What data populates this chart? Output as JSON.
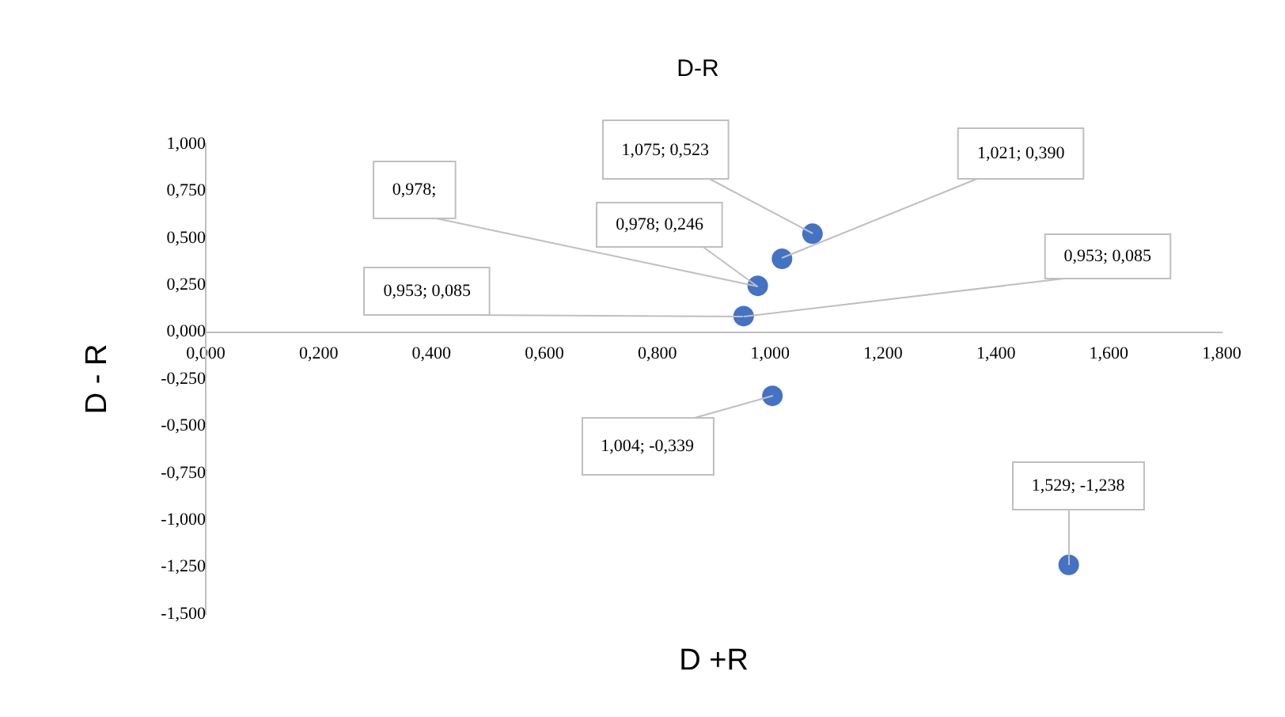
{
  "chart_data": {
    "type": "scatter",
    "title": "D-R",
    "xlabel": "D +R",
    "ylabel": "D - R",
    "marker": "circle",
    "x": [
      1.075,
      1.021,
      0.978,
      0.953,
      1.004,
      1.529
    ],
    "values": [
      0.523,
      0.39,
      0.246,
      0.085,
      -0.339,
      -1.238
    ],
    "color": "#4472c4",
    "xlim": [
      0,
      1.8
    ],
    "xticks": [
      {
        "value": 0,
        "label": "0,000"
      },
      {
        "value": 0.2,
        "label": "0,200"
      },
      {
        "value": 0.4,
        "label": "0,400"
      },
      {
        "value": 0.6,
        "label": "0,600"
      },
      {
        "value": 0.8,
        "label": "0,800"
      },
      {
        "value": 1.0,
        "label": "1,000"
      },
      {
        "value": 1.2,
        "label": "1,200"
      },
      {
        "value": 1.4,
        "label": "1,400"
      },
      {
        "value": 1.6,
        "label": "1,600"
      },
      {
        "value": 1.8,
        "label": "1,800"
      }
    ],
    "ylim": [
      -1.5,
      1.0
    ],
    "yticks": [
      {
        "value": 1.0,
        "label": "1,000"
      },
      {
        "value": 0.75,
        "label": "0,750"
      },
      {
        "value": 0.5,
        "label": "0,500"
      },
      {
        "value": 0.25,
        "label": "0,250"
      },
      {
        "value": 0,
        "label": "0,000"
      },
      {
        "value": -0.25,
        "label": "-0,250"
      },
      {
        "value": -0.5,
        "label": "-0,500"
      },
      {
        "value": -0.75,
        "label": "-0,750"
      },
      {
        "value": -1.0,
        "label": "-1,000"
      },
      {
        "value": -1.25,
        "label": "-1,250"
      },
      {
        "value": -1.5,
        "label": "-1,500"
      }
    ],
    "annotations": [
      {
        "text": "1,075; 0,523",
        "x": 1.075,
        "y": 0.523
      },
      {
        "text": "1,021; 0,390",
        "x": 1.021,
        "y": 0.39
      },
      {
        "text": "0,978;",
        "x": 0.978,
        "y": 0.246
      },
      {
        "text": "0,978; 0,246",
        "x": 0.978,
        "y": 0.246
      },
      {
        "text": "0,953; 0,085",
        "x": 0.953,
        "y": 0.085
      },
      {
        "text": "0,953; 0,085",
        "x": 0.953,
        "y": 0.085
      },
      {
        "text": "1,004; -0,339",
        "x": 1.004,
        "y": -0.339
      },
      {
        "text": "1,529; -1,238",
        "x": 1.529,
        "y": -1.238
      }
    ]
  }
}
